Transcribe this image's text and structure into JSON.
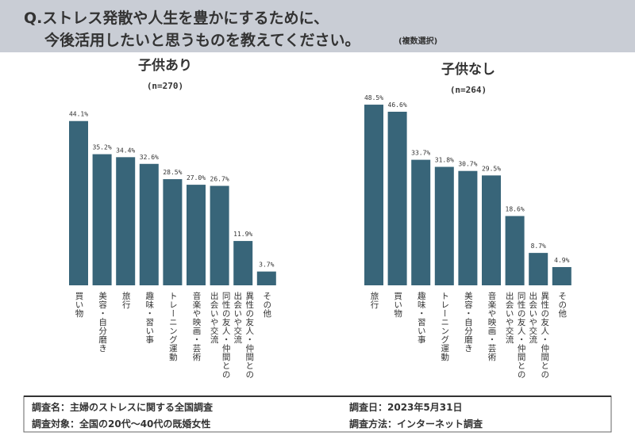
{
  "header": {
    "lines": [
      "Q.ストレス発散や人生を豊かにするために、",
      "今後活用したいと思うものを教えてください。"
    ],
    "note": "(複数選択)"
  },
  "chart_data": [
    {
      "type": "bar",
      "title": "子供あり",
      "subtitle": "(n=270)",
      "color": "#386579",
      "categories": [
        "買い物",
        "美容・自分磨き",
        "旅行",
        "趣味・習い事",
        "トレーニング運動",
        "音楽や映画・芸術",
        "同性の友人・仲間との出会いや交流",
        "異性の友人・仲間との出会いや交流",
        "その他"
      ],
      "values": [
        44.1,
        35.2,
        34.4,
        32.6,
        28.5,
        27.0,
        26.7,
        11.9,
        3.7
      ],
      "value_labels": [
        "44.1%",
        "35.2%",
        "34.4%",
        "32.6%",
        "28.5%",
        "27.0%",
        "26.7%",
        "11.9%",
        "3.7%"
      ],
      "ylim": [
        0,
        50
      ]
    },
    {
      "type": "bar",
      "title": "子供なし",
      "subtitle": "(n=264)",
      "color": "#386579",
      "categories": [
        "旅行",
        "買い物",
        "趣味・習い事",
        "トレーニング運動",
        "美容・自分磨き",
        "音楽や映画・芸術",
        "同性の友人・仲間との出会いや交流",
        "異性の友人・仲間との出会いや交流",
        "その他"
      ],
      "values": [
        48.5,
        46.6,
        33.7,
        31.8,
        30.7,
        29.5,
        18.6,
        8.7,
        4.9
      ],
      "value_labels": [
        "48.5%",
        "46.6%",
        "33.7%",
        "31.8%",
        "30.7%",
        "29.5%",
        "18.6%",
        "8.7%",
        "4.9%"
      ],
      "ylim": [
        0,
        50
      ]
    }
  ],
  "footer": {
    "survey_name": "調査名：主婦のストレスに関する全国調査",
    "target": "調査対象：全国の20代～40代の既婚女性",
    "date": "調査日：2023年5月31日",
    "method": "調査方法：インターネット調査"
  }
}
